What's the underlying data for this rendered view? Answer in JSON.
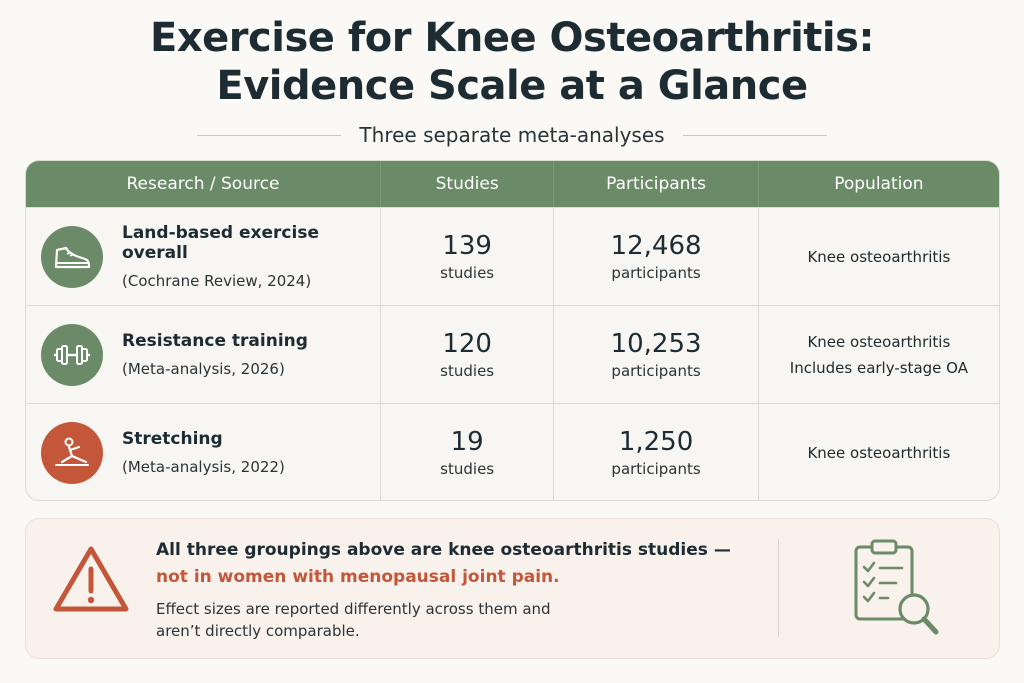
{
  "header": {
    "title_line1": "Exercise for Knee Osteoarthritis:",
    "title_line2": "Evidence Scale at a Glance",
    "subtitle": "Three separate meta-analyses"
  },
  "table": {
    "columns": [
      "Research / Source",
      "Studies",
      "Participants",
      "Population"
    ],
    "rows": [
      {
        "icon": "shoe-icon",
        "icon_color": "#6b8a67",
        "name": "Land-based exercise overall",
        "ref": "(Cochrane Review, 2024)",
        "studies": "139",
        "studies_unit": "studies",
        "participants": "12,468",
        "participants_unit": "participants",
        "population": [
          "Knee osteoarthritis"
        ]
      },
      {
        "icon": "dumbbell-icon",
        "icon_color": "#6b8a67",
        "name": "Resistance training",
        "ref": "(Meta-analysis, 2026)",
        "studies": "120",
        "studies_unit": "studies",
        "participants": "10,253",
        "participants_unit": "participants",
        "population": [
          "Knee osteoarthritis",
          "Includes early-stage OA"
        ]
      },
      {
        "icon": "stretching-person-icon",
        "icon_color": "#c4563a",
        "name": "Stretching",
        "ref": "(Meta-analysis, 2022)",
        "studies": "19",
        "studies_unit": "studies",
        "participants": "1,250",
        "participants_unit": "participants",
        "population": [
          "Knee osteoarthritis"
        ]
      }
    ]
  },
  "callout": {
    "line1": "All three groupings above are knee osteoarthritis studies —",
    "line2": "not in women with menopausal joint pain.",
    "line3": "Effect sizes are reported differently across them and aren’t directly comparable.",
    "warning_icon": "warning-triangle-icon",
    "clipboard_icon": "clipboard-search-icon",
    "accent_color": "#c4563a"
  }
}
